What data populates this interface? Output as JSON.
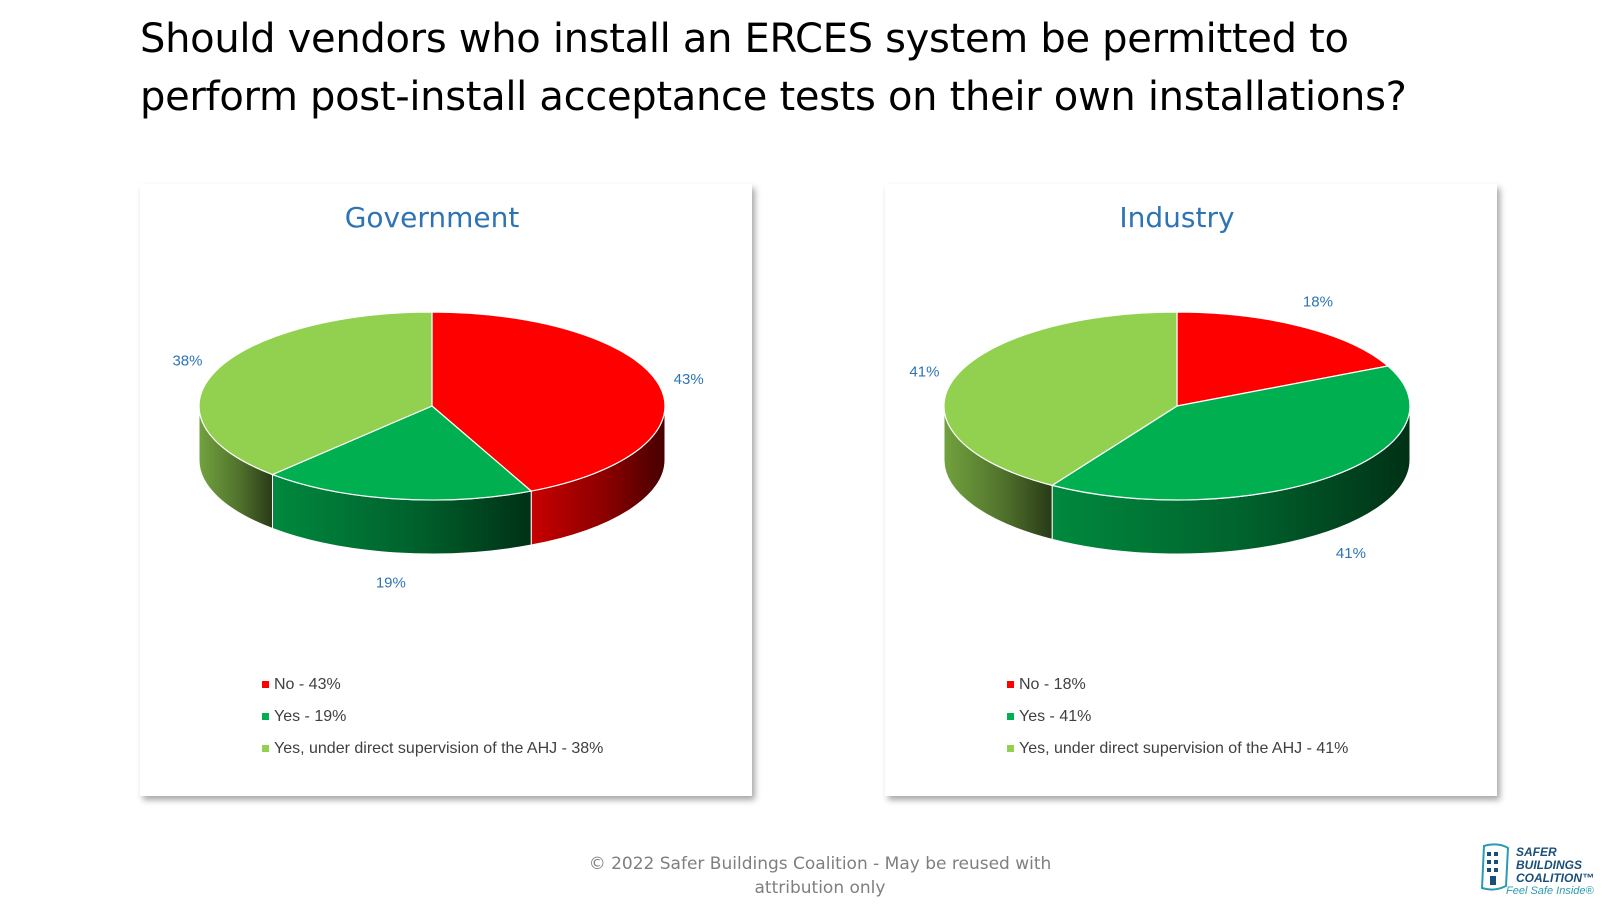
{
  "slide": {
    "title_line1": "Should vendors who install an ERCES system be permitted to",
    "title_line2": "perform post-install acceptance tests on their own installations?"
  },
  "chart_data": [
    {
      "type": "pie",
      "title": "Government",
      "categories": [
        "No",
        "Yes",
        "Yes, under direct supervision of the AHJ"
      ],
      "values": [
        43,
        19,
        38
      ],
      "data_labels": [
        "43%",
        "19%",
        "38%"
      ],
      "legend_entries": [
        "No  - 43%",
        "Yes  - 19%",
        "Yes, under direct supervision of the AHJ  - 38%"
      ],
      "colors": [
        "#ff0000",
        "#00b050",
        "#92d050"
      ],
      "legend_position": "bottom"
    },
    {
      "type": "pie",
      "title": "Industry",
      "categories": [
        "No",
        "Yes",
        "Yes, under direct supervision of the AHJ"
      ],
      "values": [
        18,
        41,
        41
      ],
      "data_labels": [
        "18%",
        "41%",
        "41%"
      ],
      "legend_entries": [
        "No  - 18%",
        "Yes  - 41%",
        "Yes, under direct supervision of the AHJ  - 41%"
      ],
      "colors": [
        "#ff0000",
        "#00b050",
        "#92d050"
      ],
      "legend_position": "bottom"
    }
  ],
  "footer": {
    "line1": "© 2022 Safer Buildings Coalition - May be reused with",
    "line2": "attribution only"
  },
  "logo": {
    "line1": "SAFER",
    "line2": "BUILDINGS",
    "line3": "COALITION™",
    "tagline": "Feel Safe Inside®"
  }
}
